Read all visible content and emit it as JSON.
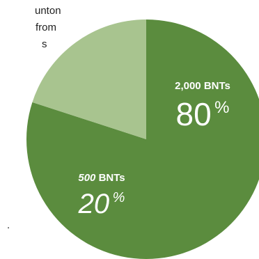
{
  "text_fragments": [
    "unton",
    "from",
    "s"
  ],
  "trailing_mark": ".",
  "chart_data": {
    "type": "pie",
    "start_angle_deg": 0,
    "direction": "clockwise",
    "slices": [
      {
        "amount": "2,000",
        "unit": "BNTs",
        "percent": 80,
        "percent_number": "80",
        "percent_symbol": "%",
        "color": "#5b8c3e"
      },
      {
        "amount": "500",
        "unit": "BNTs",
        "percent": 20,
        "percent_number": "20",
        "percent_symbol": "%",
        "color": "#a8c48f"
      }
    ]
  }
}
